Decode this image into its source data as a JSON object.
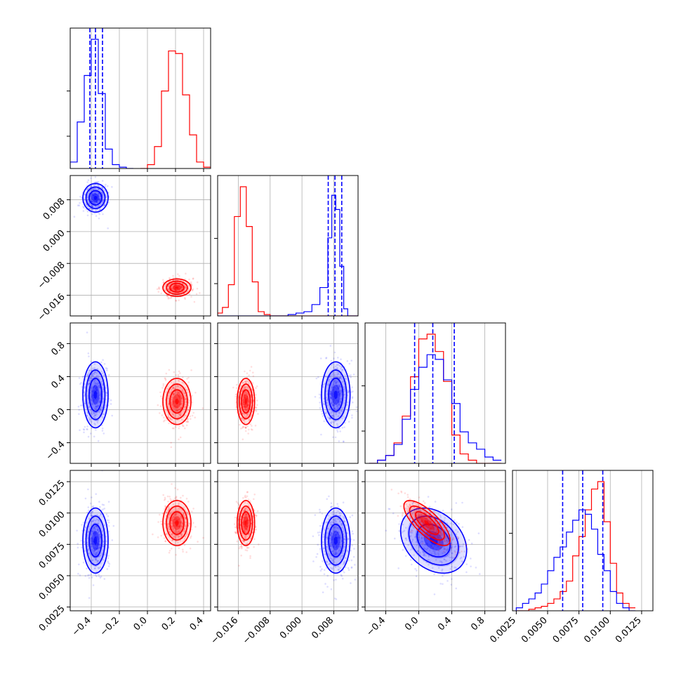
{
  "chart_data": {
    "type": "corner",
    "title": "",
    "parameters": [
      {
        "lim": [
          -0.55,
          0.45
        ],
        "ticks": [
          -0.4,
          -0.2,
          0.0,
          0.2,
          0.4
        ],
        "tick_labels": [
          "−0.4",
          "−0.2",
          "0.0",
          "0.2",
          "0.4"
        ]
      },
      {
        "lim": [
          -0.0212,
          0.0141
        ],
        "ticks": [
          -0.016,
          -0.008,
          0.0,
          0.008
        ],
        "tick_labels": [
          "−0.016",
          "−0.008",
          "0.000",
          "0.008"
        ]
      },
      {
        "lim": [
          -0.65,
          1.05
        ],
        "ticks": [
          -0.4,
          0.0,
          0.4,
          0.8
        ],
        "tick_labels": [
          "−0.4",
          "0.0",
          "0.4",
          "0.8"
        ]
      },
      {
        "lim": [
          0.0022,
          0.0134
        ],
        "ticks": [
          0.0025,
          0.005,
          0.0075,
          0.01,
          0.0125
        ],
        "tick_labels": [
          "0.0025",
          "0.0050",
          "0.0075",
          "0.0100",
          "0.0125"
        ]
      }
    ],
    "series": [
      {
        "color": "#0000ff",
        "mean": [
          -0.37,
          0.0085,
          0.18,
          0.0078
        ],
        "sd": [
          0.045,
          0.0018,
          0.2,
          0.0013
        ],
        "corr_23": -0.3,
        "quantiles": [
          [
            -0.41,
            -0.37,
            -0.32
          ],
          [
            0.0066,
            0.0083,
            0.01
          ],
          [
            -0.05,
            0.17,
            0.43
          ],
          [
            0.0062,
            0.0078,
            0.0094
          ]
        ],
        "hist": [
          {
            "edges": [
              -0.55,
              -0.5,
              -0.45,
              -0.4,
              -0.35,
              -0.3,
              -0.25,
              -0.2,
              -0.15,
              -0.1
            ],
            "values": [
              0.05,
              0.36,
              0.72,
              1.0,
              0.58,
              0.15,
              0.03,
              0.01,
              0.0
            ]
          },
          {
            "edges": [
              -0.0212,
              -0.0035,
              -0.0015,
              0.0005,
              0.0025,
              0.0045,
              0.0065,
              0.0075,
              0.0085,
              0.0095,
              0.0105,
              0.0115,
              0.0141
            ],
            "values": [
              0.0,
              0.01,
              0.02,
              0.03,
              0.08,
              0.2,
              0.55,
              0.85,
              0.75,
              0.35,
              0.05,
              0.0
            ]
          },
          {
            "edges": [
              -0.6,
              -0.5,
              -0.4,
              -0.3,
              -0.2,
              -0.1,
              0.0,
              0.1,
              0.2,
              0.3,
              0.4,
              0.5,
              0.6,
              0.7,
              0.8,
              0.9,
              1.0
            ],
            "values": [
              0.0,
              0.02,
              0.05,
              0.12,
              0.28,
              0.47,
              0.61,
              0.69,
              0.66,
              0.53,
              0.38,
              0.2,
              0.13,
              0.09,
              0.04,
              0.02
            ]
          },
          {
            "edges": [
              0.0025,
              0.003,
              0.0035,
              0.004,
              0.0045,
              0.005,
              0.0055,
              0.006,
              0.0065,
              0.007,
              0.0075,
              0.008,
              0.0085,
              0.009,
              0.0095,
              0.01,
              0.0105,
              0.011,
              0.0115,
              0.012
            ],
            "values": [
              0.02,
              0.05,
              0.08,
              0.12,
              0.18,
              0.27,
              0.36,
              0.43,
              0.53,
              0.61,
              0.68,
              0.65,
              0.55,
              0.38,
              0.27,
              0.13,
              0.05,
              0.02,
              0.0
            ]
          }
        ]
      },
      {
        "color": "#ff0000",
        "mean": [
          0.21,
          -0.0141,
          0.1,
          0.0092
        ],
        "sd": [
          0.05,
          0.0011,
          0.14,
          0.0009
        ],
        "corr_23": -0.75,
        "quantiles": [],
        "hist": [
          {
            "edges": [
              -0.05,
              0.0,
              0.05,
              0.1,
              0.15,
              0.2,
              0.25,
              0.3,
              0.35,
              0.4,
              0.45
            ],
            "values": [
              0.0,
              0.03,
              0.17,
              0.6,
              0.91,
              0.89,
              0.57,
              0.26,
              0.05,
              0.01
            ]
          },
          {
            "edges": [
              -0.0212,
              -0.02,
              -0.0185,
              -0.017,
              -0.0155,
              -0.014,
              -0.0125,
              -0.011,
              -0.0095,
              -0.008,
              0.0141
            ],
            "values": [
              0.02,
              0.06,
              0.22,
              0.7,
              0.91,
              0.63,
              0.24,
              0.03,
              0.01,
              0.0
            ]
          },
          {
            "edges": [
              -0.6,
              -0.5,
              -0.4,
              -0.3,
              -0.2,
              -0.1,
              0.0,
              0.1,
              0.2,
              0.3,
              0.4,
              0.5,
              0.6,
              0.7,
              0.8,
              0.9,
              1.0
            ],
            "values": [
              0.0,
              0.02,
              0.05,
              0.13,
              0.3,
              0.55,
              0.79,
              0.82,
              0.71,
              0.52,
              0.18,
              0.06,
              0.02,
              0.0,
              0.0,
              0.0
            ]
          },
          {
            "edges": [
              0.0025,
              0.003,
              0.0035,
              0.004,
              0.0045,
              0.005,
              0.0055,
              0.006,
              0.0065,
              0.007,
              0.0075,
              0.008,
              0.0085,
              0.009,
              0.0095,
              0.01,
              0.0105,
              0.011,
              0.0115,
              0.012
            ],
            "values": [
              0.0,
              0.0,
              0.01,
              0.02,
              0.03,
              0.05,
              0.08,
              0.13,
              0.2,
              0.37,
              0.5,
              0.68,
              0.82,
              0.87,
              0.6,
              0.32,
              0.12,
              0.05,
              0.02
            ]
          }
        ]
      }
    ]
  }
}
